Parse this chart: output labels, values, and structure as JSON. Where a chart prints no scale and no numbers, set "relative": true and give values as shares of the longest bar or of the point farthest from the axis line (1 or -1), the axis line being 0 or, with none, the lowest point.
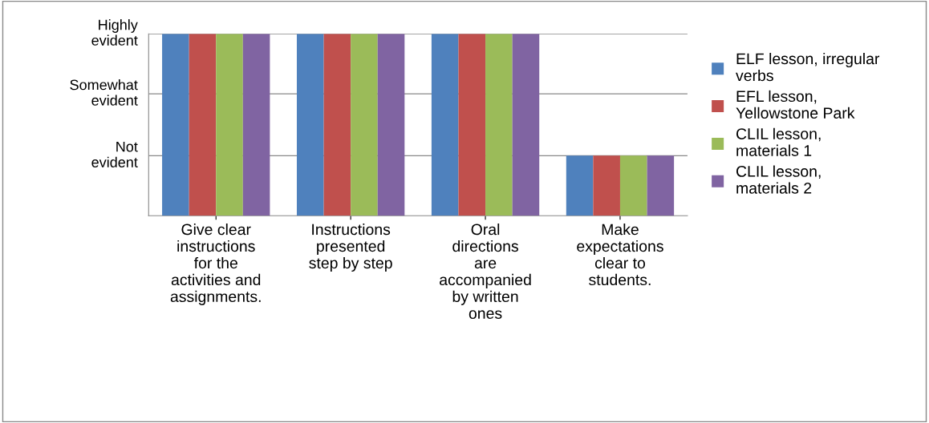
{
  "chart_data": {
    "type": "bar",
    "categories": [
      "Give clear\ninstructions\nfor the\nactivities and\nassignments.",
      "Instructions\npresented\nstep by step",
      "Oral\ndirections\nare\naccompanied\nby written\nones",
      "Make\nexpectations\nclear to\nstudents."
    ],
    "series": [
      {
        "name": "ELF lesson, irregular\nverbs",
        "color": "#4f81bd",
        "values": [
          1,
          1,
          1,
          0.33
        ]
      },
      {
        "name": "EFL lesson,\nYellowstone Park",
        "color": "#c0504d",
        "values": [
          1,
          1,
          1,
          0.33
        ]
      },
      {
        "name": "CLIL lesson,\nmaterials 1",
        "color": "#9bbb59",
        "values": [
          1,
          1,
          1,
          0.33
        ]
      },
      {
        "name": "CLIL lesson,\nmaterials 2",
        "color": "#8064a2",
        "values": [
          1,
          1,
          1,
          0.33
        ]
      }
    ],
    "relative": true,
    "ref_lines": [
      {
        "axis": "y",
        "value": 0.33,
        "label": "Not\nevident",
        "color": "#888888"
      },
      {
        "axis": "y",
        "value": 0.67,
        "label": "Somewhat\nevident",
        "color": "#888888"
      },
      {
        "axis": "y",
        "value": 1,
        "label": "Highly\nevident",
        "color": "#888888"
      }
    ],
    "legend": "right"
  }
}
